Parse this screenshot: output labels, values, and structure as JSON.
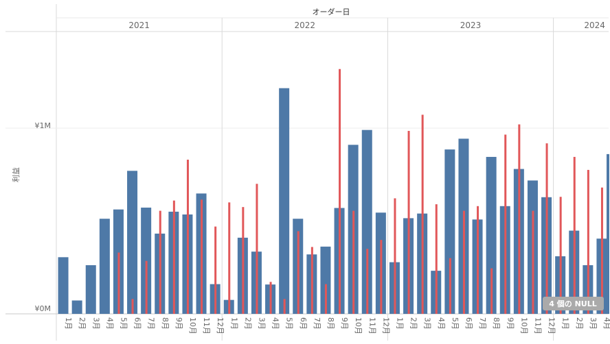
{
  "chart_data": {
    "type": "bar",
    "title": "オーダー日",
    "ylabel": "利益",
    "y_ticks": [
      {
        "value": 0,
        "label": "¥0M"
      },
      {
        "value": 1000000,
        "label": "¥1M"
      }
    ],
    "ylim": [
      0,
      1520000
    ],
    "grid": true,
    "years": [
      {
        "label": "2021",
        "months": 12
      },
      {
        "label": "2022",
        "months": 12
      },
      {
        "label": "2023",
        "months": 12
      },
      {
        "label": "2024",
        "months": 4
      }
    ],
    "categories": [
      "1月",
      "2月",
      "3月",
      "4月",
      "5月",
      "6月",
      "7月",
      "8月",
      "9月",
      "10月",
      "11月",
      "12月",
      "1月",
      "2月",
      "3月",
      "4月",
      "5月",
      "6月",
      "7月",
      "8月",
      "9月",
      "10月",
      "11月",
      "12月",
      "1月",
      "2月",
      "3月",
      "4月",
      "5月",
      "6月",
      "7月",
      "8月",
      "9月",
      "10月",
      "11月",
      "12月",
      "1月",
      "2月",
      "3月",
      "4月"
    ],
    "series": [
      {
        "color": "#4e79a7",
        "mark": "bar",
        "values": [
          305000,
          72000,
          262000,
          512000,
          562000,
          770000,
          572000,
          432000,
          550000,
          535000,
          648000,
          160000,
          75000,
          410000,
          335000,
          158000,
          1215000,
          512000,
          320000,
          362000,
          570000,
          910000,
          990000,
          545000,
          278000,
          515000,
          540000,
          232000,
          885000,
          943000,
          508000,
          845000,
          580000,
          780000,
          718000,
          628000,
          310000,
          448000,
          262000,
          405000
        ]
      },
      {
        "color": "#e15759",
        "mark": "line-bar",
        "values": [
          0,
          0,
          0,
          0,
          330000,
          80000,
          285000,
          555000,
          610000,
          830000,
          615000,
          470000,
          600000,
          575000,
          700000,
          172000,
          80000,
          445000,
          360000,
          160000,
          1318000,
          555000,
          350000,
          398000,
          622000,
          985000,
          1072000,
          590000,
          300000,
          555000,
          580000,
          245000,
          965000,
          1020000,
          555000,
          918000,
          630000,
          845000,
          775000,
          680000
        ]
      }
    ],
    "partial_next_bar": 860000,
    "null_badge": "4 個の NULL"
  }
}
